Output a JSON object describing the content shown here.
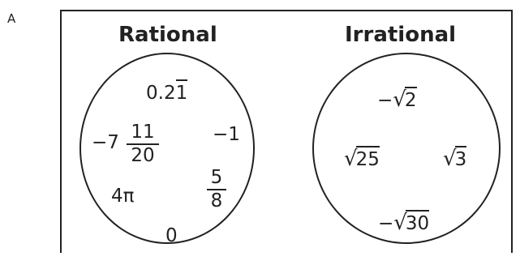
{
  "option_letter": "A",
  "rational": {
    "heading": "Rational",
    "repeating_decimal": {
      "lead": "0.2",
      "repeat": "1"
    },
    "mixed_number": {
      "sign": "−",
      "whole": "7",
      "numerator": "11",
      "denominator": "20"
    },
    "neg_one": "−1",
    "fraction": {
      "numerator": "5",
      "denominator": "8"
    },
    "four_pi": "4π",
    "zero": "0"
  },
  "irrational": {
    "heading": "Irrational",
    "neg_sqrt2": {
      "sign": "−",
      "radical": "√",
      "radicand": "2"
    },
    "sqrt25": {
      "radical": "√",
      "radicand": "25"
    },
    "sqrt3": {
      "radical": "√",
      "radicand": "3"
    },
    "neg_sqrt30": {
      "sign": "−",
      "radical": "√",
      "radicand": "30"
    }
  }
}
